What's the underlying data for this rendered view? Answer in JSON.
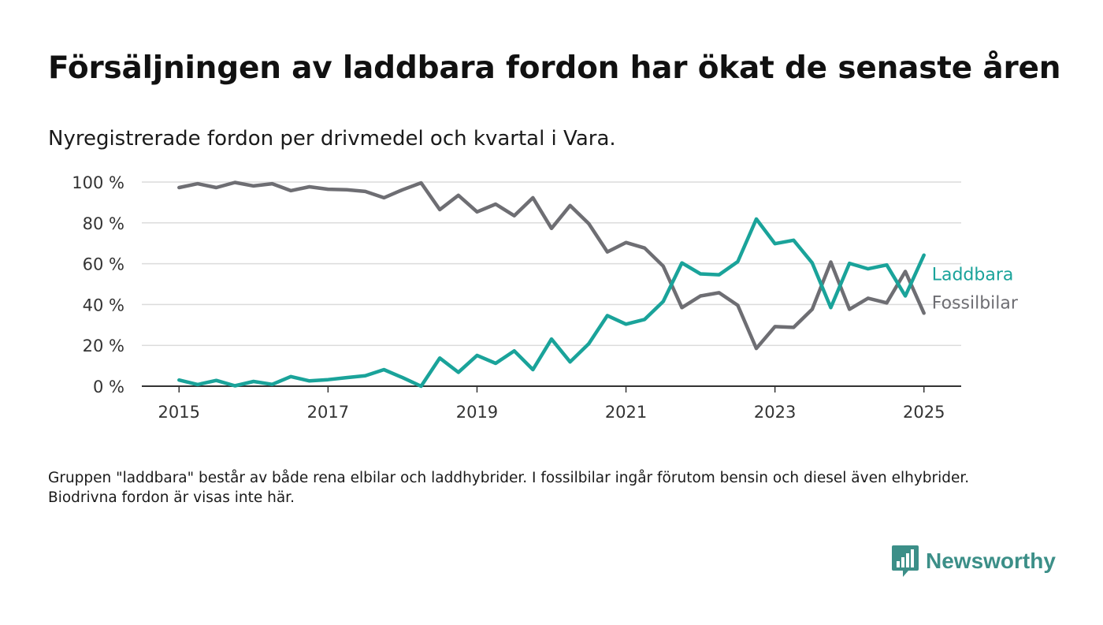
{
  "title": "Försäljningen av laddbara fordon har ökat de senaste åren",
  "subtitle": "Nyregistrerade fordon per drivmedel och kvartal i Vara.",
  "footnote": "Gruppen \"laddbara\" består av både rena elbilar och laddhybrider. I fossilbilar ingår förutom bensin och diesel även elhybrider. Biodrivna fordon är visas inte här.",
  "brand": {
    "name": "Newsworthy",
    "icon": "newsworthy-bar-chart-icon",
    "color": "#3c8f88"
  },
  "chart_data": {
    "type": "line",
    "x_start": "2015 Q1",
    "x": [
      2015.0,
      2015.25,
      2015.5,
      2015.75,
      2016.0,
      2016.25,
      2016.5,
      2016.75,
      2017.0,
      2017.25,
      2017.5,
      2017.75,
      2018.0,
      2018.25,
      2018.5,
      2018.75,
      2019.0,
      2019.25,
      2019.5,
      2019.75,
      2020.0,
      2020.25,
      2020.5,
      2020.75,
      2021.0,
      2021.25,
      2021.5,
      2021.75,
      2022.0,
      2022.25,
      2022.5,
      2022.75,
      2023.0,
      2023.25,
      2023.5,
      2023.75,
      2024.0,
      2024.25,
      2024.5,
      2024.75,
      2025.0
    ],
    "xlim": [
      2014.5,
      2025.5
    ],
    "xticks": [
      2015,
      2017,
      2019,
      2021,
      2023,
      2025
    ],
    "ylim": [
      0,
      100
    ],
    "yticks": [
      0,
      20,
      40,
      60,
      80,
      100
    ],
    "ytick_labels": [
      "0 %",
      "20 %",
      "40 %",
      "60 %",
      "80 %",
      "100 %"
    ],
    "grid": true,
    "legend": "direct labels at line ends (right)",
    "series": [
      {
        "name": "Laddbara",
        "color": "#1aa39a",
        "values": [
          3,
          0.8,
          2.8,
          0.2,
          2.3,
          0.9,
          4.7,
          2.6,
          3.2,
          4.2,
          5.1,
          8.1,
          4.2,
          0,
          13.8,
          6.8,
          15.1,
          11.2,
          17.3,
          8.1,
          23.1,
          11.9,
          20.8,
          34.6,
          30.4,
          32.7,
          41.5,
          60.4,
          55,
          54.6,
          61,
          81.9,
          69.8,
          71.5,
          60.4,
          38.5,
          60.2,
          57.5,
          59.4,
          44.2,
          64.2
        ]
      },
      {
        "name": "Fossilbilar",
        "color": "#6e6e73",
        "values": [
          97.3,
          99.2,
          97.3,
          99.8,
          98.1,
          99.2,
          95.8,
          97.7,
          96.5,
          96.2,
          95.4,
          92.3,
          96.2,
          99.6,
          86.5,
          93.5,
          85.4,
          89.2,
          83.5,
          92.3,
          77.3,
          88.5,
          79.6,
          65.8,
          70.4,
          67.7,
          58.8,
          38.5,
          44.2,
          45.8,
          39.6,
          18.5,
          29.2,
          28.8,
          37.7,
          60.8,
          37.7,
          43.1,
          40.8,
          56.2,
          35.8
        ]
      }
    ]
  }
}
